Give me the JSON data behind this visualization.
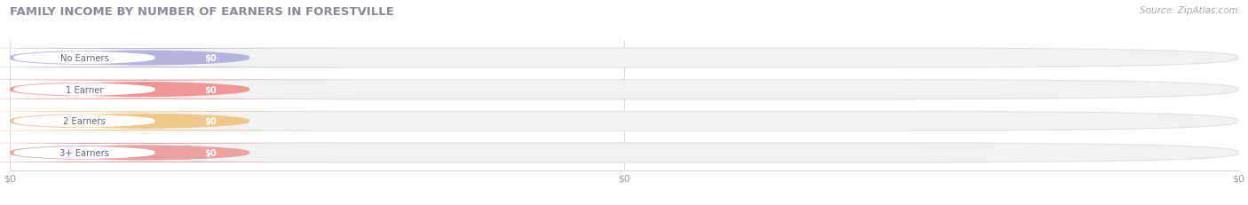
{
  "title": "FAMILY INCOME BY NUMBER OF EARNERS IN FORESTVILLE",
  "source": "Source: ZipAtlas.com",
  "categories": [
    "No Earners",
    "1 Earner",
    "2 Earners",
    "3+ Earners"
  ],
  "values": [
    0,
    0,
    0,
    0
  ],
  "pill_bg_colors": [
    "#a0a0d8",
    "#f07878",
    "#f0b868",
    "#e88888"
  ],
  "bar_bg_color": "#f2f2f2",
  "bar_border_color": "#e0e0e0",
  "title_color": "#888899",
  "source_color": "#aaaaaa",
  "value_label": "$0",
  "tick_labels": [
    "$0",
    "$0",
    "$0"
  ],
  "background_color": "#ffffff",
  "xlim": [
    0,
    1
  ],
  "figsize": [
    14.06,
    2.32
  ],
  "dpi": 100
}
